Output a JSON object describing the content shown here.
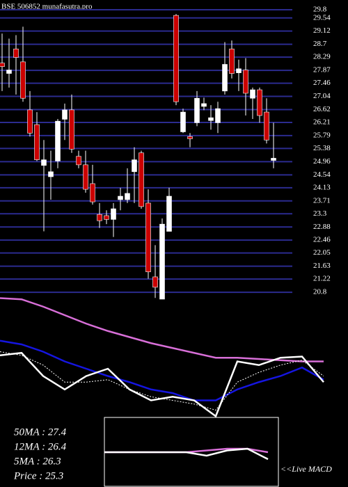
{
  "chart_data": [
    {
      "type": "candlestick",
      "title": "BSE 506852 munafasutra.pro",
      "ylim": [
        20.58,
        30.11
      ],
      "yticks": [
        29.8,
        29.54,
        29.12,
        28.7,
        28.29,
        27.87,
        27.46,
        27.04,
        26.62,
        26.21,
        25.79,
        25.38,
        24.96,
        24.54,
        24.13,
        23.71,
        23.3,
        22.88,
        22.46,
        22.05,
        21.63,
        21.22,
        20.8
      ],
      "grid": true,
      "up_color": "#ffffff",
      "down_color": "#cc0000",
      "grid_color": "#2b2b8f",
      "open": [
        28.1,
        27.77,
        28.55,
        28.14,
        26.61,
        26.14,
        24.84,
        24.48,
        24.98,
        26.31,
        26.61,
        25.13,
        24.86,
        24.26,
        23.28,
        23.24,
        23.12,
        23.75,
        23.75,
        24.64,
        25.24,
        23.64,
        21.29,
        20.58,
        22.74,
        29.62,
        25.91,
        25.76,
        26.2,
        26.72,
        26.27,
        26.2,
        27.21,
        28.55,
        27.79,
        27.88,
        26.98,
        27.25,
        26.54,
        25.0
      ],
      "high": [
        29.04,
        28.88,
        28.99,
        29.26,
        27.21,
        26.54,
        25.65,
        25.31,
        26.32,
        26.81,
        27.1,
        25.31,
        25.31,
        24.86,
        23.64,
        23.41,
        23.64,
        24.13,
        24.75,
        25.42,
        25.31,
        24.08,
        22.3,
        23.15,
        24.13,
        29.66,
        26.65,
        25.87,
        27.21,
        27.0,
        26.76,
        26.87,
        28.77,
        28.82,
        28.21,
        28.26,
        27.32,
        27.32,
        26.98,
        26.2
      ],
      "low": [
        27.21,
        27.32,
        27.1,
        26.87,
        25.76,
        24.98,
        22.74,
        23.75,
        24.75,
        25.65,
        25.24,
        24.75,
        23.97,
        23.59,
        22.85,
        22.97,
        22.56,
        23.41,
        23.64,
        23.64,
        23.46,
        21.23,
        20.62,
        20.58,
        22.74,
        26.76,
        25.87,
        25.42,
        26.09,
        26.6,
        25.98,
        25.87,
        27.1,
        27.61,
        27.21,
        26.43,
        26.32,
        26.2,
        25.54,
        24.75
      ],
      "close": [
        27.99,
        27.88,
        28.28,
        26.98,
        25.87,
        25.02,
        25.02,
        24.64,
        26.25,
        26.61,
        25.36,
        24.86,
        24.08,
        23.68,
        23.08,
        23.12,
        23.46,
        23.86,
        23.95,
        25.02,
        23.53,
        21.45,
        20.96,
        22.97,
        23.86,
        26.87,
        26.54,
        25.69,
        26.98,
        26.81,
        26.36,
        26.65,
        28.06,
        27.77,
        27.92,
        27.14,
        27.25,
        26.43,
        25.65,
        25.07
      ],
      "annotations": [
        "50MA : 27.4",
        "12MA : 26.4",
        "5MA : 26.3",
        "Price  : 25.3"
      ]
    },
    {
      "type": "line",
      "ylim": [
        0,
        100
      ],
      "series": [
        {
          "color": "#d86fd8",
          "dash": false,
          "values": [
            98,
            97,
            91,
            84,
            77,
            71,
            66,
            61,
            57,
            53,
            49,
            49,
            48,
            47,
            46,
            46
          ]
        },
        {
          "color": "#1515e0",
          "dash": false,
          "values": [
            63,
            60,
            54,
            46,
            40,
            34,
            29,
            23,
            20,
            14,
            14,
            23,
            29,
            34,
            41,
            31
          ]
        },
        {
          "color": "#ffffff",
          "dash": false,
          "values": [
            51,
            53,
            34,
            23,
            34,
            40,
            23,
            14,
            17,
            14,
            1,
            46,
            43,
            49,
            50,
            29
          ]
        },
        {
          "color": "#ffffff",
          "dash": true,
          "values": [
            54,
            51,
            43,
            29,
            29,
            31,
            23,
            17,
            14,
            11,
            6,
            29,
            37,
            43,
            47,
            34
          ]
        }
      ]
    },
    {
      "type": "line",
      "title": "<<Live MACD",
      "ylim": [
        -10,
        10
      ],
      "series": [
        {
          "color": "#d86fd8",
          "dash": false,
          "values": [
            0,
            0,
            0,
            0,
            0,
            0.5,
            1,
            1,
            0
          ]
        },
        {
          "color": "#ffffff",
          "dash": false,
          "values": [
            0,
            0,
            0,
            0,
            0,
            -1,
            0.5,
            1,
            -2
          ]
        }
      ]
    }
  ]
}
